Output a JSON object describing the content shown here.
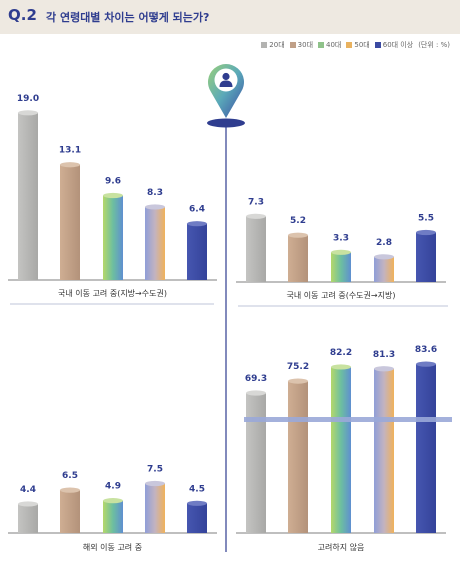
{
  "header": {
    "question_number": "Q.2",
    "title": "각 연령대별 차이는 어떻게 되는가?"
  },
  "legend": {
    "items": [
      {
        "label": "20대",
        "color": "#b3b3b1"
      },
      {
        "label": "30대",
        "color": "#c0a088"
      },
      {
        "label": "40대",
        "color": "#8fc28a"
      },
      {
        "label": "50대",
        "color": "#e9b25f"
      },
      {
        "label": "60대 이상",
        "color": "#3b4aa2"
      }
    ],
    "unit": "(단위 : %)"
  },
  "pin_icon": "person-pin-icon",
  "colors": {
    "accent": "#2f3d8f",
    "header_bg": "#eee9e1",
    "divider": "#2f3d8f",
    "horizontal_band": "#9aa8d8"
  },
  "chart_data": [
    {
      "type": "bar",
      "title": "국내 이동 고려 중(지방→수도권)",
      "categories": [
        "20대",
        "30대",
        "40대",
        "50대",
        "60대 이상"
      ],
      "values": [
        19.0,
        13.1,
        9.6,
        8.3,
        6.4
      ],
      "value_labels": [
        "19.0",
        "13.1",
        "9.6",
        "8.3",
        "6.4"
      ]
    },
    {
      "type": "bar",
      "title": "국내 이동 고려 중(수도권→지방)",
      "categories": [
        "20대",
        "30대",
        "40대",
        "50대",
        "60대 이상"
      ],
      "values": [
        7.3,
        5.2,
        3.3,
        2.8,
        5.5
      ],
      "value_labels": [
        "7.3",
        "5.2",
        "3.3",
        "2.8",
        "5.5"
      ]
    },
    {
      "type": "bar",
      "title": "해외 이동 고려 중",
      "categories": [
        "20대",
        "30대",
        "40대",
        "50대",
        "60대 이상"
      ],
      "values": [
        4.4,
        6.5,
        4.9,
        7.5,
        4.5
      ],
      "value_labels": [
        "4.4",
        "6.5",
        "4.9",
        "7.5",
        "4.5"
      ]
    },
    {
      "type": "bar",
      "title": "고려하지 않음",
      "categories": [
        "20대",
        "30대",
        "40대",
        "50대",
        "60대 이상"
      ],
      "values": [
        69.3,
        75.2,
        82.2,
        81.3,
        83.6
      ],
      "value_labels": [
        "69.3",
        "75.2",
        "82.2",
        "81.3",
        "83.6"
      ]
    }
  ]
}
